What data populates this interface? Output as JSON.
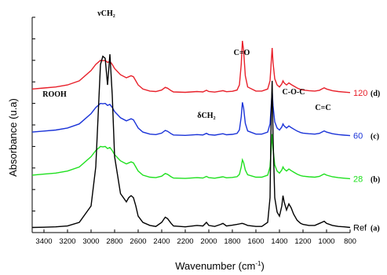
{
  "chart_data": {
    "type": "line",
    "xlabel": "Wavenumber (cm",
    "xlabel_sup": "-1",
    "xlabel_end": ")",
    "ylabel": "Absorbance (u.a)",
    "xlim": [
      3500,
      800
    ],
    "x_reversed": true,
    "x_ticks": [
      "3400",
      "3200",
      "3000",
      "2800",
      "2600",
      "2400",
      "2200",
      "2000",
      "1800",
      "1600",
      "1400",
      "1200",
      "1000",
      "800"
    ],
    "y_tick_count": 11,
    "annotations": [
      {
        "text": "ROOH",
        "x": 3310
      },
      {
        "text": "νCH₂",
        "x": 2870
      },
      {
        "text": "δCH₂",
        "x": 2020
      },
      {
        "text": "C=O",
        "x": 1720
      },
      {
        "text": "C-O-C",
        "x": 1280
      },
      {
        "text": "C=C",
        "x": 1030
      }
    ],
    "series": [
      {
        "name": "120",
        "letter": "(d)",
        "color": "#e8202a",
        "offset": 0.68,
        "cho": 1.0,
        "x": [
          3500,
          3400,
          3300,
          3200,
          3100,
          3000,
          2960,
          2920,
          2900,
          2880,
          2860,
          2840,
          2820,
          2800,
          2750,
          2700,
          2680,
          2660,
          2640,
          2620,
          2600,
          2560,
          2500,
          2450,
          2400,
          2370,
          2350,
          2320,
          2300,
          2200,
          2100,
          2050,
          2020,
          2000,
          1950,
          1900,
          1880,
          1850,
          1800,
          1760,
          1740,
          1725,
          1715,
          1705,
          1690,
          1670,
          1600,
          1550,
          1500,
          1480,
          1470,
          1462,
          1455,
          1440,
          1420,
          1400,
          1380,
          1370,
          1360,
          1340,
          1320,
          1300,
          1280,
          1250,
          1220,
          1200,
          1150,
          1100,
          1060,
          1040,
          1020,
          1000,
          950,
          900,
          850,
          800
        ],
        "y": [
          0.02,
          0.025,
          0.03,
          0.04,
          0.06,
          0.11,
          0.14,
          0.16,
          0.158,
          0.16,
          0.15,
          0.155,
          0.14,
          0.12,
          0.09,
          0.075,
          0.08,
          0.085,
          0.08,
          0.06,
          0.04,
          0.02,
          0.01,
          0.008,
          0.015,
          0.028,
          0.024,
          0.012,
          0.006,
          0.004,
          0.008,
          0.006,
          0.014,
          0.008,
          0.005,
          0.01,
          0.012,
          0.007,
          0.009,
          0.012,
          0.02,
          0.04,
          0.055,
          0.05,
          0.035,
          0.02,
          0.01,
          0.01,
          0.02,
          0.06,
          0.15,
          0.22,
          0.15,
          0.07,
          0.04,
          0.03,
          0.045,
          0.06,
          0.05,
          0.04,
          0.05,
          0.042,
          0.035,
          0.025,
          0.018,
          0.015,
          0.012,
          0.01,
          0.014,
          0.02,
          0.026,
          0.02,
          0.012,
          0.008,
          0.005,
          0.003
        ]
      },
      {
        "name": "60",
        "letter": "(c)",
        "color": "#1a33d8",
        "offset": 0.47,
        "cho": 0.55,
        "x": [
          3500,
          3400,
          3300,
          3200,
          3100,
          3000,
          2960,
          2920,
          2900,
          2880,
          2860,
          2840,
          2820,
          2800,
          2750,
          2700,
          2680,
          2660,
          2640,
          2620,
          2600,
          2560,
          2500,
          2450,
          2400,
          2370,
          2350,
          2320,
          2300,
          2200,
          2100,
          2050,
          2020,
          2000,
          1950,
          1900,
          1880,
          1850,
          1800,
          1760,
          1740,
          1725,
          1715,
          1705,
          1690,
          1670,
          1600,
          1550,
          1500,
          1480,
          1470,
          1462,
          1455,
          1440,
          1420,
          1400,
          1380,
          1370,
          1360,
          1340,
          1320,
          1300,
          1280,
          1250,
          1220,
          1200,
          1150,
          1100,
          1060,
          1040,
          1020,
          1000,
          950,
          900,
          850,
          800
        ],
        "y": [
          0.02,
          0.025,
          0.03,
          0.04,
          0.06,
          0.11,
          0.14,
          0.16,
          0.158,
          0.16,
          0.15,
          0.155,
          0.14,
          0.12,
          0.09,
          0.075,
          0.08,
          0.085,
          0.08,
          0.06,
          0.04,
          0.02,
          0.01,
          0.008,
          0.015,
          0.028,
          0.024,
          0.012,
          0.006,
          0.004,
          0.008,
          0.006,
          0.014,
          0.008,
          0.005,
          0.01,
          0.012,
          0.007,
          0.009,
          0.012,
          0.02,
          0.04,
          0.055,
          0.05,
          0.035,
          0.02,
          0.01,
          0.01,
          0.02,
          0.06,
          0.15,
          0.22,
          0.15,
          0.07,
          0.04,
          0.03,
          0.045,
          0.06,
          0.05,
          0.04,
          0.05,
          0.042,
          0.035,
          0.025,
          0.018,
          0.015,
          0.012,
          0.01,
          0.014,
          0.02,
          0.026,
          0.02,
          0.012,
          0.008,
          0.005,
          0.003
        ]
      },
      {
        "name": "28",
        "letter": "(b)",
        "color": "#1fe01f",
        "offset": 0.26,
        "cho": 0.2,
        "x": [
          3500,
          3400,
          3300,
          3200,
          3100,
          3000,
          2960,
          2920,
          2900,
          2880,
          2860,
          2840,
          2820,
          2800,
          2750,
          2700,
          2680,
          2660,
          2640,
          2620,
          2600,
          2560,
          2500,
          2450,
          2400,
          2370,
          2350,
          2320,
          2300,
          2200,
          2100,
          2050,
          2020,
          2000,
          1950,
          1900,
          1880,
          1850,
          1800,
          1760,
          1740,
          1725,
          1715,
          1705,
          1690,
          1670,
          1600,
          1550,
          1500,
          1480,
          1470,
          1462,
          1455,
          1440,
          1420,
          1400,
          1380,
          1370,
          1360,
          1340,
          1320,
          1300,
          1280,
          1250,
          1220,
          1200,
          1150,
          1100,
          1060,
          1040,
          1020,
          1000,
          950,
          900,
          850,
          800
        ],
        "y": [
          0.02,
          0.025,
          0.03,
          0.04,
          0.06,
          0.11,
          0.14,
          0.16,
          0.158,
          0.16,
          0.15,
          0.155,
          0.14,
          0.12,
          0.09,
          0.075,
          0.08,
          0.085,
          0.08,
          0.06,
          0.04,
          0.02,
          0.01,
          0.008,
          0.015,
          0.028,
          0.024,
          0.012,
          0.006,
          0.004,
          0.008,
          0.006,
          0.014,
          0.008,
          0.005,
          0.01,
          0.012,
          0.007,
          0.009,
          0.012,
          0.02,
          0.04,
          0.055,
          0.05,
          0.035,
          0.02,
          0.01,
          0.01,
          0.02,
          0.06,
          0.15,
          0.22,
          0.15,
          0.07,
          0.04,
          0.03,
          0.045,
          0.06,
          0.05,
          0.04,
          0.05,
          0.042,
          0.035,
          0.025,
          0.018,
          0.015,
          0.012,
          0.01,
          0.014,
          0.02,
          0.026,
          0.02,
          0.012,
          0.008,
          0.005,
          0.003
        ]
      },
      {
        "name": "Ref",
        "letter": "(a)",
        "color": "#000000",
        "offset": 0.02,
        "cho": 0.0,
        "x": [
          3500,
          3400,
          3300,
          3200,
          3100,
          3000,
          2960,
          2920,
          2900,
          2880,
          2860,
          2840,
          2820,
          2800,
          2750,
          2700,
          2680,
          2660,
          2640,
          2620,
          2600,
          2560,
          2500,
          2450,
          2400,
          2370,
          2350,
          2320,
          2300,
          2200,
          2100,
          2050,
          2020,
          2000,
          1950,
          1900,
          1880,
          1850,
          1800,
          1760,
          1740,
          1725,
          1715,
          1705,
          1690,
          1670,
          1600,
          1550,
          1500,
          1480,
          1470,
          1462,
          1455,
          1440,
          1420,
          1400,
          1380,
          1370,
          1360,
          1340,
          1320,
          1300,
          1280,
          1250,
          1220,
          1200,
          1150,
          1100,
          1060,
          1040,
          1020,
          1000,
          950,
          900,
          850,
          800
        ],
        "y": [
          0.005,
          0.006,
          0.008,
          0.012,
          0.03,
          0.11,
          0.3,
          0.8,
          0.84,
          0.83,
          0.7,
          0.85,
          0.65,
          0.35,
          0.17,
          0.13,
          0.15,
          0.16,
          0.15,
          0.11,
          0.06,
          0.03,
          0.015,
          0.01,
          0.03,
          0.055,
          0.048,
          0.025,
          0.012,
          0.008,
          0.015,
          0.012,
          0.03,
          0.015,
          0.01,
          0.02,
          0.025,
          0.012,
          0.016,
          0.02,
          0.022,
          0.024,
          0.025,
          0.023,
          0.02,
          0.015,
          0.01,
          0.01,
          0.03,
          0.15,
          0.55,
          0.72,
          0.45,
          0.15,
          0.08,
          0.06,
          0.11,
          0.16,
          0.13,
          0.09,
          0.12,
          0.1,
          0.07,
          0.04,
          0.025,
          0.02,
          0.015,
          0.015,
          0.025,
          0.03,
          0.035,
          0.025,
          0.015,
          0.01,
          0.008,
          0.005
        ]
      }
    ],
    "carbonyl_band": {
      "x": [
        1760,
        1740,
        1725,
        1715,
        1705,
        1690,
        1670
      ],
      "y": [
        0.003,
        0.02,
        0.1,
        0.2,
        0.16,
        0.05,
        0.01
      ]
    },
    "ylim": [
      0,
      1.05
    ]
  }
}
